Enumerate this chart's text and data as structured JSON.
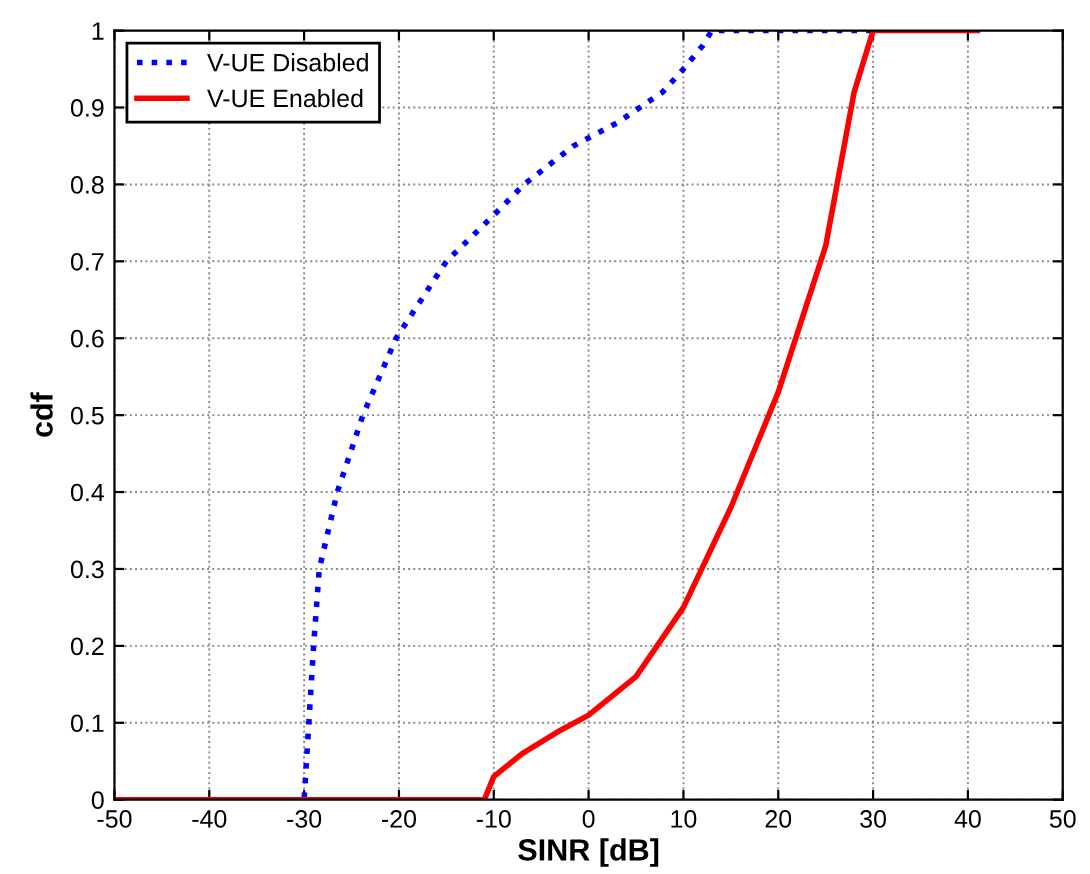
{
  "chart_data": {
    "type": "line",
    "xlabel": "SINR [dB]",
    "ylabel": "cdf",
    "series": [
      {
        "name": "V-UE Disabled",
        "color": "#0000ff",
        "line_style": "dotted",
        "x": [
          -50,
          -30,
          -29.5,
          -29,
          -28.4,
          -26.5,
          -23.8,
          -20.3,
          -15,
          -10,
          -6.8,
          -1.6,
          3,
          7.8,
          10,
          12,
          13,
          30
        ],
        "values": [
          0,
          0,
          0.1,
          0.2,
          0.3,
          0.4,
          0.5,
          0.6,
          0.7,
          0.76,
          0.8,
          0.85,
          0.88,
          0.92,
          0.95,
          0.98,
          1,
          1
        ]
      },
      {
        "name": "V-UE Enabled",
        "color": "#ff0000",
        "line_style": "solid",
        "x": [
          -50,
          -11,
          -10,
          -7,
          -3,
          0,
          5,
          10,
          15,
          20,
          25,
          28,
          30,
          41
        ],
        "values": [
          0,
          0,
          0.03,
          0.06,
          0.09,
          0.11,
          0.16,
          0.25,
          0.38,
          0.53,
          0.72,
          0.92,
          1,
          1
        ]
      }
    ],
    "xlim": [
      -50,
      50
    ],
    "xticks": [
      -50,
      -40,
      -30,
      -20,
      -10,
      0,
      10,
      20,
      30,
      40,
      50
    ],
    "ylim": [
      0,
      1
    ],
    "yticks": [
      0,
      0.1,
      0.2,
      0.3,
      0.4,
      0.5,
      0.6,
      0.7,
      0.8,
      0.9,
      1
    ],
    "grid": true,
    "legend": "top left"
  }
}
